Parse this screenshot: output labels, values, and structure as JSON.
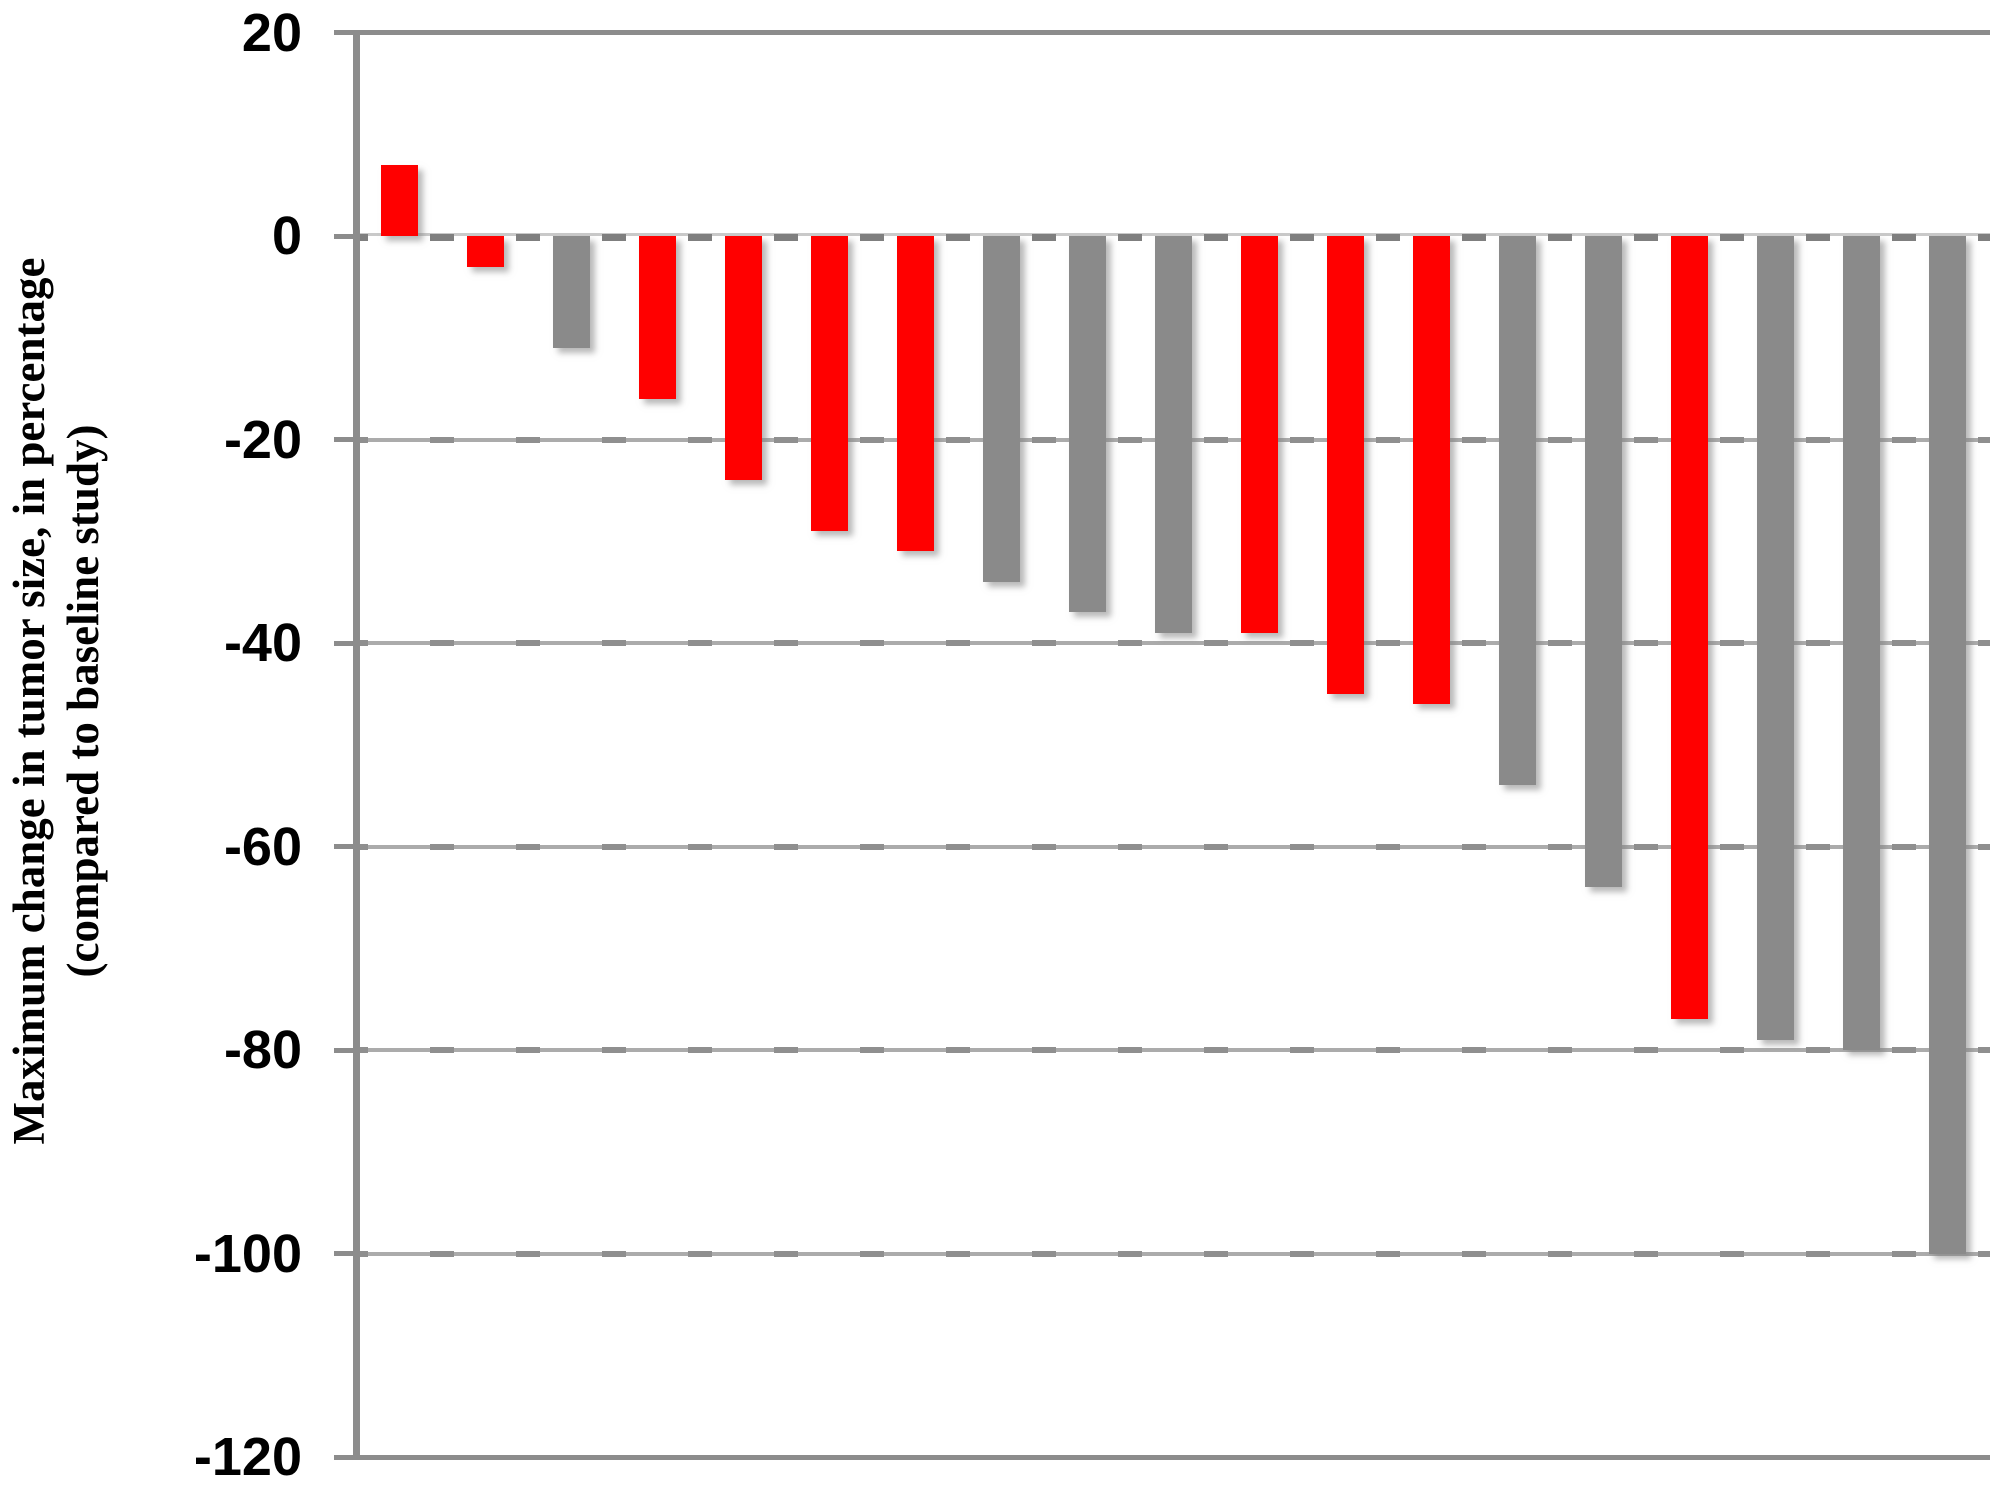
{
  "chart_data": {
    "type": "bar",
    "title": "",
    "ylabel": "Maximum change in tumor size, in percentage (compared to baseline study)",
    "ylabel_lines": [
      "Maximum change in tumor size, in percentage",
      "(compared to baseline study)"
    ],
    "xlabel": "",
    "ylim": [
      -120,
      20
    ],
    "grid": true,
    "legend": "none",
    "yticks": [
      20,
      0,
      -20,
      -40,
      -60,
      -80,
      -100,
      -120
    ],
    "ytick_labels": [
      "20",
      "0",
      "-20",
      "-40",
      "-60",
      "-80",
      "-100",
      "-120"
    ],
    "n_bars": 19,
    "bars": [
      {
        "index": 1,
        "value": 7,
        "color": "red"
      },
      {
        "index": 2,
        "value": -3,
        "color": "red"
      },
      {
        "index": 3,
        "value": -11,
        "color": "gray"
      },
      {
        "index": 4,
        "value": -16,
        "color": "red"
      },
      {
        "index": 5,
        "value": -24,
        "color": "red"
      },
      {
        "index": 6,
        "value": -29,
        "color": "red"
      },
      {
        "index": 7,
        "value": -31,
        "color": "red"
      },
      {
        "index": 8,
        "value": -34,
        "color": "gray"
      },
      {
        "index": 9,
        "value": -37,
        "color": "gray"
      },
      {
        "index": 10,
        "value": -39,
        "color": "gray"
      },
      {
        "index": 11,
        "value": -39,
        "color": "red"
      },
      {
        "index": 12,
        "value": -45,
        "color": "red"
      },
      {
        "index": 13,
        "value": -46,
        "color": "red"
      },
      {
        "index": 14,
        "value": -54,
        "color": "gray"
      },
      {
        "index": 15,
        "value": -64,
        "color": "gray"
      },
      {
        "index": 16,
        "value": -77,
        "color": "red"
      },
      {
        "index": 17,
        "value": -79,
        "color": "gray"
      },
      {
        "index": 18,
        "value": -80,
        "color": "gray"
      },
      {
        "index": 19,
        "value": -100,
        "color": "gray"
      }
    ],
    "colors": {
      "red": "#FF0000",
      "gray": "#8A8A8A",
      "axis": "#8C8C8C",
      "gridline": "#ABABAB",
      "dash": "#7F7F7F",
      "label": "#000000"
    }
  }
}
